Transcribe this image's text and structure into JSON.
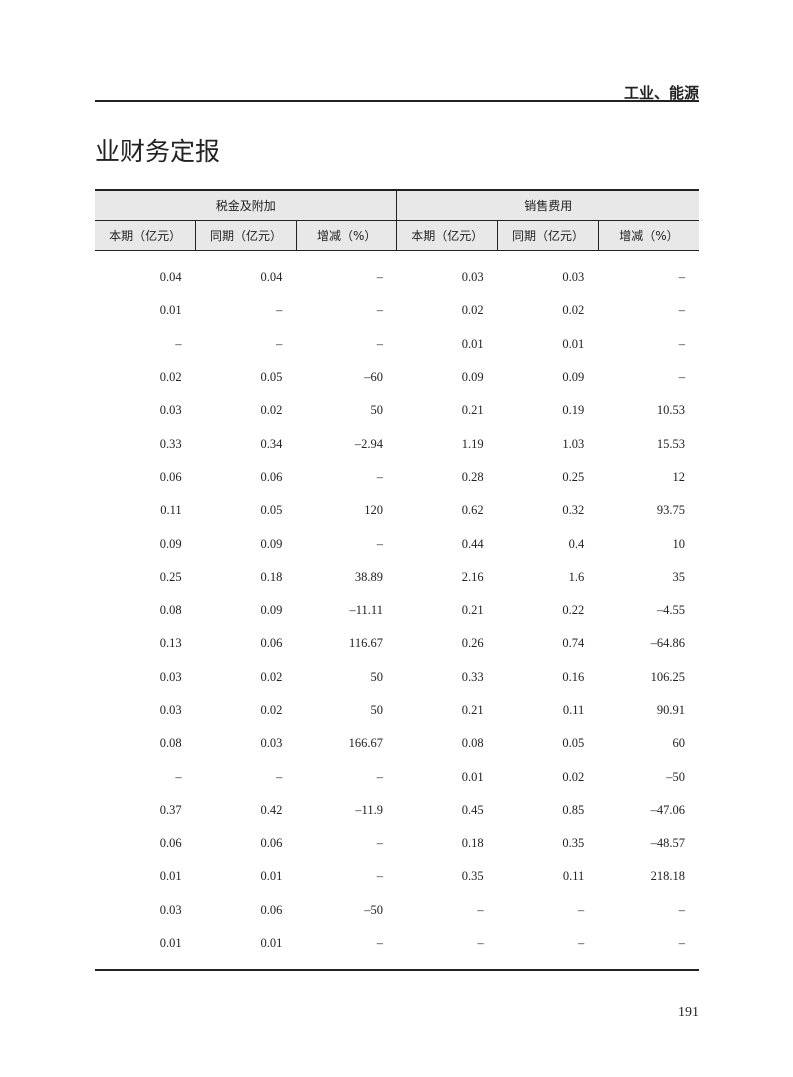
{
  "header": {
    "section": "工业、能源",
    "title": "业财务定报"
  },
  "table": {
    "groups": [
      "税金及附加",
      "销售费用"
    ],
    "columns": [
      "本期（亿元）",
      "同期（亿元）",
      "增减（%）",
      "本期（亿元）",
      "同期（亿元）",
      "增减（%）"
    ],
    "rows": [
      [
        "0.04",
        "0.04",
        "–",
        "0.03",
        "0.03",
        "–"
      ],
      [
        "0.01",
        "–",
        "–",
        "0.02",
        "0.02",
        "–"
      ],
      [
        "–",
        "–",
        "–",
        "0.01",
        "0.01",
        "–"
      ],
      [
        "0.02",
        "0.05",
        "–60",
        "0.09",
        "0.09",
        "–"
      ],
      [
        "0.03",
        "0.02",
        "50",
        "0.21",
        "0.19",
        "10.53"
      ],
      [
        "0.33",
        "0.34",
        "–2.94",
        "1.19",
        "1.03",
        "15.53"
      ],
      [
        "0.06",
        "0.06",
        "–",
        "0.28",
        "0.25",
        "12"
      ],
      [
        "0.11",
        "0.05",
        "120",
        "0.62",
        "0.32",
        "93.75"
      ],
      [
        "0.09",
        "0.09",
        "–",
        "0.44",
        "0.4",
        "10"
      ],
      [
        "0.25",
        "0.18",
        "38.89",
        "2.16",
        "1.6",
        "35"
      ],
      [
        "0.08",
        "0.09",
        "–11.11",
        "0.21",
        "0.22",
        "–4.55"
      ],
      [
        "0.13",
        "0.06",
        "116.67",
        "0.26",
        "0.74",
        "–64.86"
      ],
      [
        "0.03",
        "0.02",
        "50",
        "0.33",
        "0.16",
        "106.25"
      ],
      [
        "0.03",
        "0.02",
        "50",
        "0.21",
        "0.11",
        "90.91"
      ],
      [
        "0.08",
        "0.03",
        "166.67",
        "0.08",
        "0.05",
        "60"
      ],
      [
        "–",
        "–",
        "–",
        "0.01",
        "0.02",
        "–50"
      ],
      [
        "0.37",
        "0.42",
        "–11.9",
        "0.45",
        "0.85",
        "–47.06"
      ],
      [
        "0.06",
        "0.06",
        "–",
        "0.18",
        "0.35",
        "–48.57"
      ],
      [
        "0.01",
        "0.01",
        "–",
        "0.35",
        "0.11",
        "218.18"
      ],
      [
        "0.03",
        "0.06",
        "–50",
        "–",
        "–",
        "–"
      ],
      [
        "0.01",
        "0.01",
        "–",
        "–",
        "–",
        "–"
      ]
    ]
  },
  "footer": {
    "page_number": "191"
  }
}
